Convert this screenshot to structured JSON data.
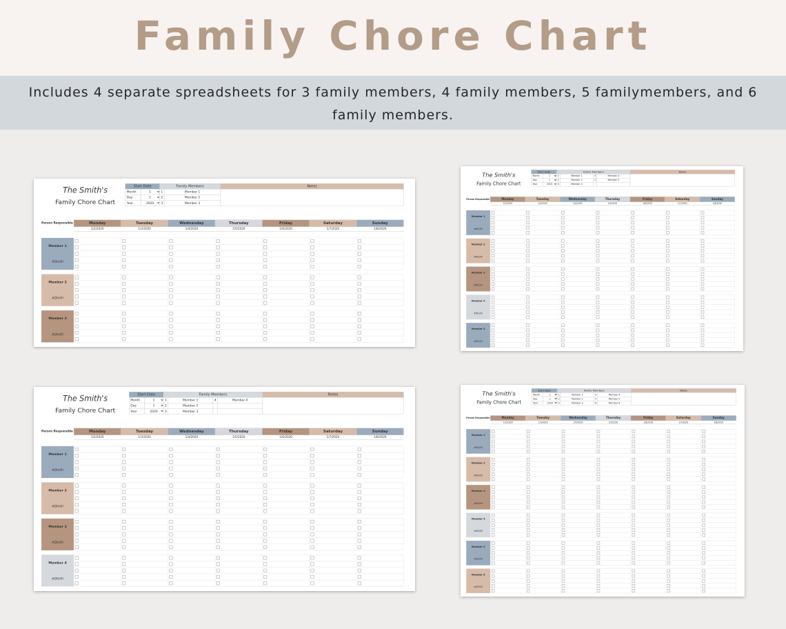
{
  "header": {
    "title": "Family Chore Chart",
    "subtitle": "Includes 4 separate spreadsheets for 3 family members, 4 family members, 5 familymembers, and 6 family members."
  },
  "sheets": [
    {
      "family_name": "The Smith's",
      "title": "Family Chore Chart",
      "start_date_label": "Start Date",
      "start_date": [
        {
          "label": "Month",
          "value": "1"
        },
        {
          "label": "Day",
          "value": "1"
        },
        {
          "label": "Year",
          "value": "2020"
        }
      ],
      "family_members_label": "Family Members",
      "family_members": [
        {
          "number": "1",
          "name": "Member 1"
        },
        {
          "number": "2",
          "name": "Member 2"
        },
        {
          "number": "3",
          "name": "Member 3"
        }
      ],
      "notes_label": "Notes",
      "person_responsible": "Person Responsible",
      "days": [
        "Monday",
        "Tuesday",
        "Wednesday",
        "Thursday",
        "Friday",
        "Saturday",
        "Sunday"
      ],
      "dates": [
        "1/2/2020",
        "1/3/2020",
        "1/4/2020",
        "1/5/2020",
        "1/6/2020",
        "1/7/2020",
        "1/8/2020"
      ],
      "members": [
        {
          "name": "Member 1",
          "score": "#DIV/0!"
        },
        {
          "name": "Member 2",
          "score": "#DIV/0!"
        },
        {
          "name": "Member 3",
          "score": "#DIV/0!"
        }
      ]
    },
    {
      "family_name": "The Smith's",
      "title": "Family Chore Chart",
      "start_date_label": "Start Date",
      "start_date": [
        {
          "label": "Month",
          "value": "1"
        },
        {
          "label": "Day",
          "value": "1"
        },
        {
          "label": "Year",
          "value": "2020"
        }
      ],
      "family_members_label": "Family Members",
      "family_members": [
        {
          "number": "1",
          "name": "Member 1"
        },
        {
          "number": "2",
          "name": "Member 2"
        },
        {
          "number": "3",
          "name": "Member 3"
        },
        {
          "number": "4",
          "name": "Member 4"
        },
        {
          "number": "5",
          "name": "Member 5"
        }
      ],
      "notes_label": "Notes",
      "person_responsible": "Person Responsible",
      "days": [
        "Monday",
        "Tuesday",
        "Wednesday",
        "Thursday",
        "Friday",
        "Saturday",
        "Sunday"
      ],
      "dates": [
        "1/2/2020",
        "1/3/2020",
        "1/4/2020",
        "1/5/2020",
        "1/6/2020",
        "1/7/2020",
        "1/8/2020"
      ],
      "members": [
        {
          "name": "Member 1",
          "score": "#DIV/0!"
        },
        {
          "name": "Member 2",
          "score": "#DIV/0!"
        },
        {
          "name": "Member 3",
          "score": "#DIV/0!"
        },
        {
          "name": "Member 4",
          "score": "#DIV/0!"
        },
        {
          "name": "Member 5",
          "score": "#DIV/0!"
        }
      ]
    },
    {
      "family_name": "The Smith's",
      "title": "Family Chore Chart",
      "start_date_label": "Start Date",
      "start_date": [
        {
          "label": "Month",
          "value": "1"
        },
        {
          "label": "Day",
          "value": "1"
        },
        {
          "label": "Year",
          "value": "2020"
        }
      ],
      "family_members_label": "Family Members",
      "family_members": [
        {
          "number": "1",
          "name": "Member 1"
        },
        {
          "number": "2",
          "name": "Member 2"
        },
        {
          "number": "3",
          "name": "Member 3"
        },
        {
          "number": "4",
          "name": "Member 4"
        }
      ],
      "notes_label": "Notes",
      "person_responsible": "Person Responsible",
      "days": [
        "Monday",
        "Tuesday",
        "Wednesday",
        "Thursday",
        "Friday",
        "Saturday",
        "Sunday"
      ],
      "dates": [
        "1/2/2020",
        "1/3/2020",
        "1/4/2020",
        "1/5/2020",
        "1/6/2020",
        "1/7/2020",
        "1/8/2020"
      ],
      "members": [
        {
          "name": "Member 1",
          "score": "#DIV/0!"
        },
        {
          "name": "Member 2",
          "score": "#DIV/0!"
        },
        {
          "name": "Member 3",
          "score": "#DIV/0!"
        },
        {
          "name": "Member 4",
          "score": "#DIV/0!"
        }
      ]
    },
    {
      "family_name": "The Smith's",
      "title": "Family Chore Chart",
      "start_date_label": "Start Date",
      "start_date": [
        {
          "label": "Month",
          "value": "1"
        },
        {
          "label": "Day",
          "value": "1"
        },
        {
          "label": "Year",
          "value": "2020"
        }
      ],
      "family_members_label": "Family Members",
      "family_members": [
        {
          "number": "1",
          "name": "Member 1"
        },
        {
          "number": "2",
          "name": "Member 2"
        },
        {
          "number": "3",
          "name": "Member 3"
        },
        {
          "number": "4",
          "name": "Member 4"
        },
        {
          "number": "5",
          "name": "Member 5"
        },
        {
          "number": "6",
          "name": "Member 6"
        }
      ],
      "notes_label": "Notes",
      "person_responsible": "Person Responsible",
      "days": [
        "Monday",
        "Tuesday",
        "Wednesday",
        "Thursday",
        "Friday",
        "Saturday",
        "Sunday"
      ],
      "dates": [
        "1/2/2020",
        "1/3/2020",
        "1/4/2020",
        "1/5/2020",
        "1/6/2020",
        "1/7/2020",
        "1/8/2020"
      ],
      "members": [
        {
          "name": "Member 1",
          "score": "#DIV/0!"
        },
        {
          "name": "Member 2",
          "score": "#DIV/0!"
        },
        {
          "name": "Member 3",
          "score": "#DIV/0!"
        },
        {
          "name": "Member 4",
          "score": "#DIV/0!"
        },
        {
          "name": "Member 5",
          "score": "#DIV/0!"
        },
        {
          "name": "Member 6",
          "score": "#DIV/0!"
        }
      ]
    }
  ]
}
